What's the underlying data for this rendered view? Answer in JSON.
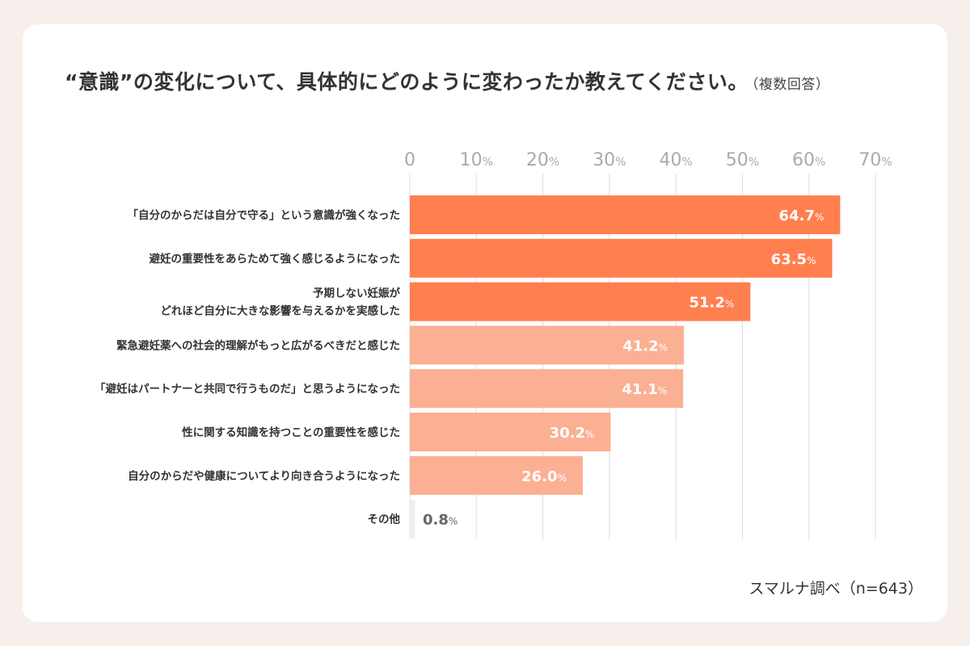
{
  "chart_data": {
    "type": "bar",
    "orientation": "horizontal",
    "title": "“意識”の変化について、具体的にどのように変わったか教えてください。",
    "subtitle": "（複数回答）",
    "source": "スマルナ調べ（n=643）",
    "xlim": [
      0,
      70
    ],
    "ticks": [
      "0",
      "10%",
      "20%",
      "30%",
      "40%",
      "50%",
      "60%",
      "70%"
    ],
    "tick_values": [
      0,
      10,
      20,
      30,
      40,
      50,
      60,
      70
    ],
    "grid": true,
    "categories": [
      "「自分のからだは自分で守る」という意識が強くなった",
      "避妊の重要性をあらためて強く感じるようになった",
      "予期しない妊娠が\nどれほど自分に大きな影響を与えるかを実感した",
      "緊急避妊薬への社会的理解がもっと広がるべきだと感じた",
      "「避妊はパートナーと共同で行うものだ」と思うようになった",
      "性に関する知識を持つことの重要性を感じた",
      "自分のからだや健康についてより向き合うようになった",
      "その他"
    ],
    "values": [
      64.7,
      63.5,
      51.2,
      41.2,
      41.1,
      30.2,
      26.0,
      0.8
    ],
    "value_labels": [
      "64.7",
      "63.5",
      "51.2",
      "41.2",
      "41.1",
      "30.2",
      "26.0",
      "0.8"
    ],
    "unit": "%",
    "colors": {
      "top3": "#ff7f4f",
      "middle": "#fbb093",
      "other": "#eeeeee",
      "grid": "#dcdce0",
      "tick": "#aaaaaa"
    }
  }
}
